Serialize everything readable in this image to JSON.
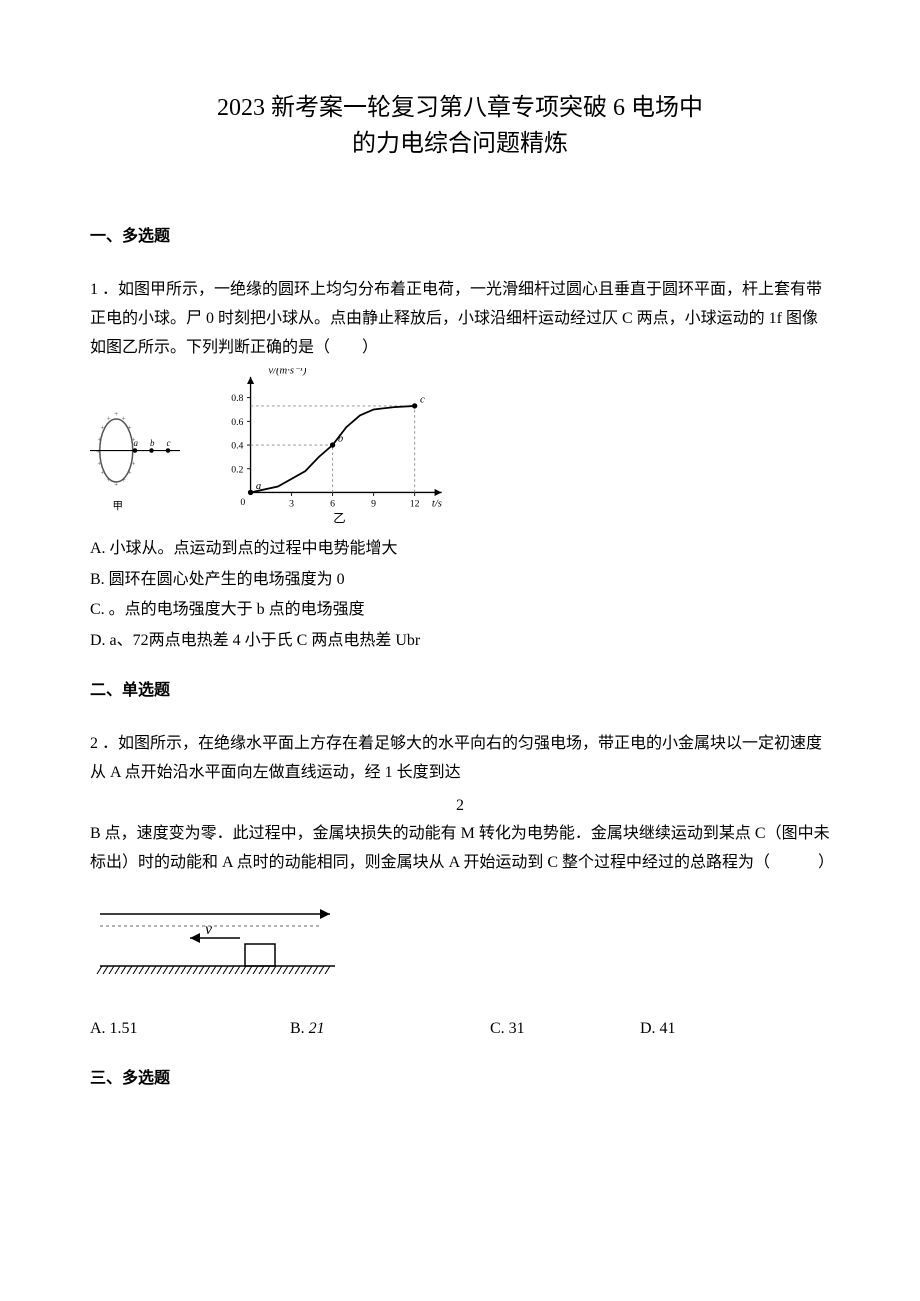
{
  "title_line1": "2023 新考案一轮复习第八章专项突破 6 电场中",
  "title_line2": "的力电综合问题精炼",
  "section1": "一、多选题",
  "q1": {
    "text": "1 ．如图甲所示，一绝缘的圆环上均匀分布着正电荷，一光滑细杆过圆心且垂直于圆环平面，杆上套有带正电的小球。尸 0 时刻把小球从。点由静止释放后，小球沿细杆运动经过仄 C 两点，小球运动的 1f 图像如图乙所示。下列判断正确的是（　　）",
    "optA": "A. 小球从。点运动到点的过程中电势能增大",
    "optB": "B. 圆环在圆心处产生的电场强度为 0",
    "optC": "C. 。点的电场强度大于 b 点的电场强度",
    "optD": "D. a、72两点电热差 4 小于氏 C 两点电热差 Ubr"
  },
  "ring_fig": {
    "ellipse_stroke": "#555555",
    "plus_color": "#555555",
    "dot_color": "#000000",
    "caption": "甲",
    "labels": [
      "a",
      "b",
      "c"
    ]
  },
  "graph": {
    "axis_color": "#000000",
    "grid_color": "#888888",
    "y_label": "v/(m·s⁻¹)",
    "x_label": "t/s",
    "y_ticks": [
      "0.2",
      "0.4",
      "0.6",
      "0.8"
    ],
    "y_values": [
      0.2,
      0.4,
      0.6,
      0.8
    ],
    "x_ticks": [
      "3",
      "6",
      "9",
      "12"
    ],
    "x_values": [
      3,
      6,
      9,
      12
    ],
    "y_max": 0.9,
    "x_max": 13,
    "curve": [
      [
        0,
        0
      ],
      [
        2,
        0.05
      ],
      [
        4,
        0.18
      ],
      [
        5,
        0.3
      ],
      [
        6,
        0.4
      ],
      [
        7,
        0.55
      ],
      [
        8,
        0.65
      ],
      [
        9,
        0.7
      ],
      [
        10.5,
        0.72
      ],
      [
        12,
        0.73
      ]
    ],
    "points": {
      "a": [
        0,
        0
      ],
      "b": [
        6,
        0.4
      ],
      "c": [
        12,
        0.73
      ]
    },
    "caption": "乙"
  },
  "section2": "二、单选题",
  "q2": {
    "text1": "2 ．如图所示，在绝缘水平面上方存在着足够大的水平向右的匀强电场，带正电的小金属块以一定初速度从 A 点开始沿水平面向左做直线运动，经 1 长度到达",
    "frac_num": "2",
    "text2": "B 点，速度变为零．此过程中，金属块损失的动能有 M 转化为电势能．金属块继续运动到某点 C（图中未标出）时的动能和 A 点时的动能相同，则金属块从 A 开始运动到 C 整个过程中经过的总路程为（　　　）",
    "choiceA": "A. 1.51",
    "choiceB_pre": "B. ",
    "choiceB_val": "21",
    "choiceC": "C. 31",
    "choiceD": "D. 41"
  },
  "q2_fig": {
    "arrow_color": "#000000",
    "hatch_color": "#000000",
    "v_label": "v",
    "dotted_color": "#666666"
  },
  "section3": "三、多选题"
}
